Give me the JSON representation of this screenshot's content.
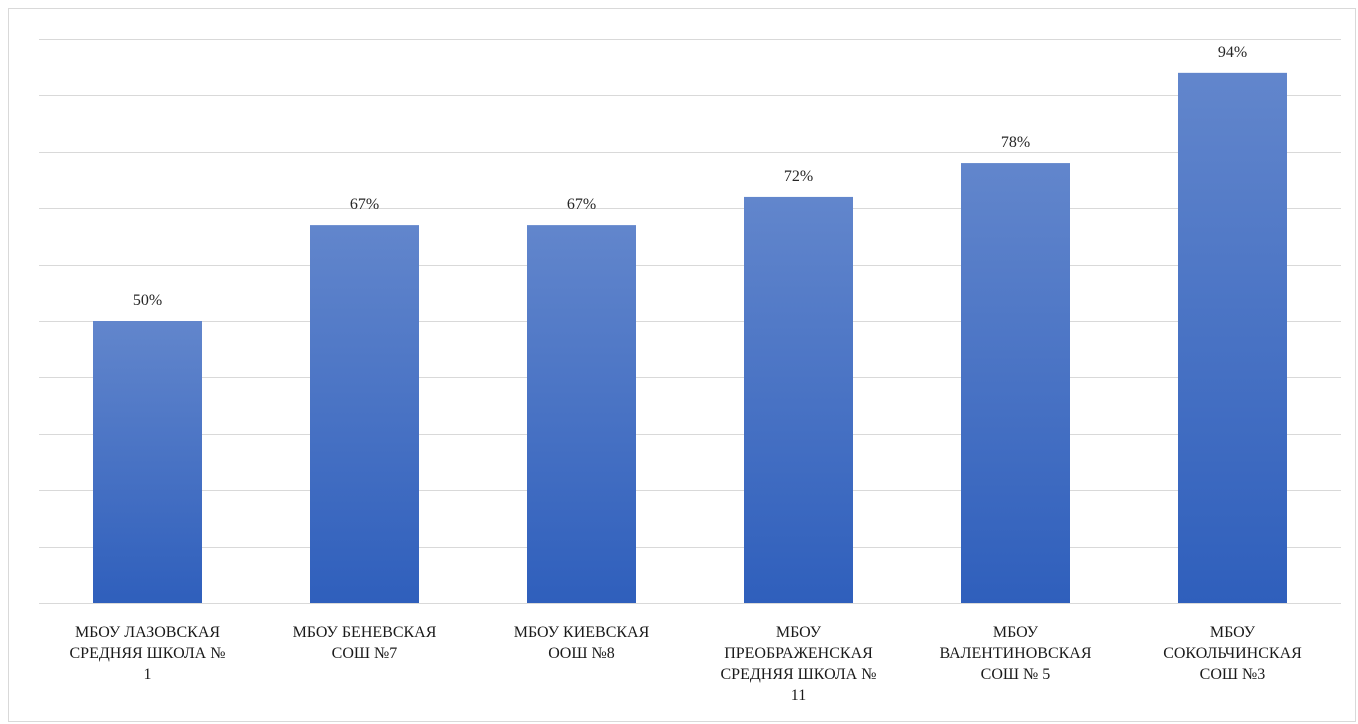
{
  "chart_data": {
    "type": "bar",
    "categories": [
      [
        "МБОУ ЛАЗОВСКАЯ",
        "СРЕДНЯЯ ШКОЛА №",
        "1"
      ],
      [
        "МБОУ БЕНЕВСКАЯ",
        "СОШ №7"
      ],
      [
        "МБОУ КИЕВСКАЯ",
        "ООШ №8"
      ],
      [
        "МБОУ",
        "ПРЕОБРАЖЕНСКАЯ",
        "СРЕДНЯЯ ШКОЛА №",
        "11"
      ],
      [
        "МБОУ",
        "ВАЛЕНТИНОВСКАЯ",
        "СОШ № 5"
      ],
      [
        "МБОУ",
        "СОКОЛЬЧИНСКАЯ",
        "СОШ №3"
      ]
    ],
    "values": [
      50,
      67,
      67,
      72,
      78,
      94
    ],
    "data_labels": [
      "50%",
      "67%",
      "67%",
      "72%",
      "78%",
      "94%"
    ],
    "ylim": [
      0,
      100
    ],
    "gridlines": true,
    "grid_step": 10,
    "legend": "none",
    "bar_color_top": "#6286cc",
    "bar_color_bottom": "#2f5fbc",
    "grid_color": "#d9d9d9"
  }
}
